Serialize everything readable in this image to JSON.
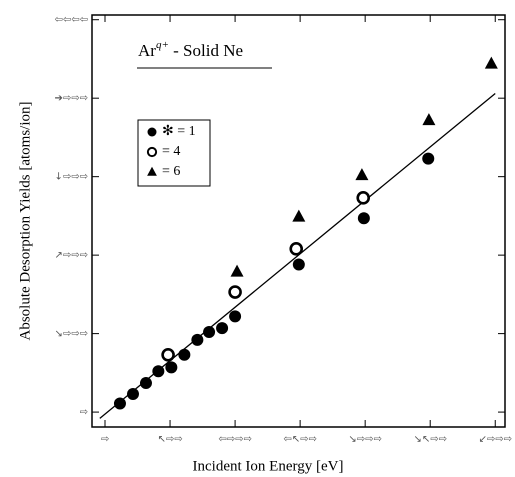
{
  "chart_data": {
    "type": "scatter",
    "title": {
      "base": "Ar",
      "superscript": "q+",
      "rest": " - Solid Ne"
    },
    "xlabel": "Incident Ion Energy [eV]",
    "ylabel": "Absolute Desorption Yields [atoms/ion]",
    "xlim": [
      -0.2,
      6.15
    ],
    "ylim": [
      -0.19,
      5.06
    ],
    "xticks": [
      {
        "value": 0,
        "label": "⇨"
      },
      {
        "value": 1,
        "label": "↖⇨⇨"
      },
      {
        "value": 2,
        "label": "⇦⇨⇨⇨"
      },
      {
        "value": 3,
        "label": "⇦↖⇨⇨"
      },
      {
        "value": 4,
        "label": "↘⇨⇨⇨"
      },
      {
        "value": 5,
        "label": "↘↖⇨⇨"
      },
      {
        "value": 6,
        "label": "↙⇨⇨⇨"
      }
    ],
    "yticks": [
      {
        "value": 0,
        "label": "⇨"
      },
      {
        "value": 1,
        "label": "↘⇨⇨⇨"
      },
      {
        "value": 2,
        "label": "↗⇨⇨⇨"
      },
      {
        "value": 3,
        "label": "↓⇨⇨⇨"
      },
      {
        "value": 4,
        "label": "➔⇨⇨⇨"
      },
      {
        "value": 5,
        "label": "⇦⇦⇦⇦"
      }
    ],
    "legend": "upper left",
    "series": [
      {
        "name": "✻ = 1",
        "marker": "circle-filled",
        "color": "#000000",
        "x": [
          0.23,
          0.43,
          0.63,
          0.82,
          1.02,
          1.22,
          1.42,
          1.6,
          1.8,
          2.0,
          2.98,
          3.98,
          4.97
        ],
        "values": [
          0.11,
          0.23,
          0.37,
          0.52,
          0.57,
          0.73,
          0.92,
          1.02,
          1.07,
          1.22,
          1.88,
          2.47,
          3.23
        ]
      },
      {
        "name": "= 4",
        "marker": "circle-open",
        "color": "#000000",
        "x": [
          0.97,
          2.0,
          2.94,
          3.97
        ],
        "values": [
          0.73,
          1.53,
          2.08,
          2.73
        ]
      },
      {
        "name": "= 6",
        "marker": "triangle",
        "color": "#000000",
        "x": [
          2.03,
          2.98,
          3.95,
          4.98,
          5.94
        ],
        "values": [
          1.79,
          2.49,
          3.02,
          3.72,
          4.44
        ]
      }
    ],
    "fit_line": {
      "color": "#000000",
      "x": [
        -0.08,
        6.0
      ],
      "values": [
        -0.08,
        4.06
      ]
    }
  }
}
